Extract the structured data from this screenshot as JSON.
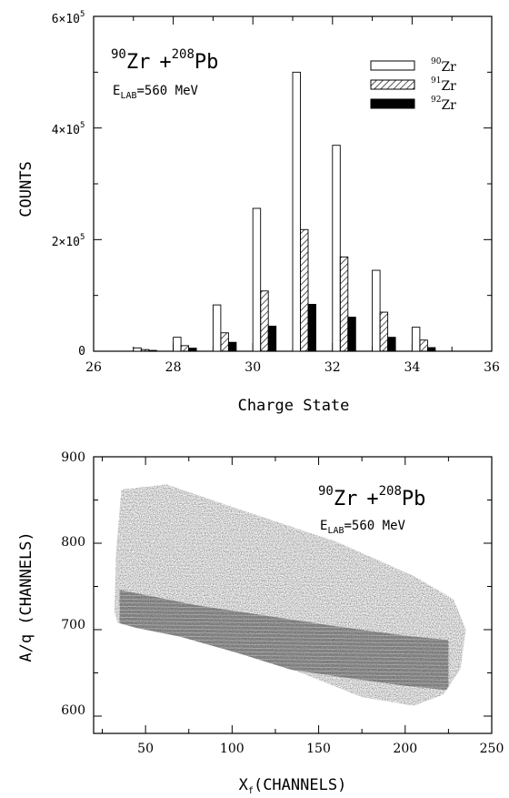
{
  "chart_data": [
    {
      "type": "bar",
      "title": "",
      "annotation": {
        "reaction": {
          "proj_mass": "90",
          "proj_sym": "Zr",
          "plus": "+",
          "targ_mass": "208",
          "targ_sym": "Pb"
        },
        "energy": {
          "prefix": "E",
          "sub": "LAB",
          "value": "=560 MeV"
        }
      },
      "xlabel": "Charge State",
      "ylabel": "COUNTS",
      "xlim": [
        26,
        36
      ],
      "ylim": [
        0,
        600000
      ],
      "x_ticks": [
        26,
        28,
        30,
        32,
        34,
        36
      ],
      "y_ticks": [
        {
          "value": 0,
          "mantissa": "0",
          "exp": ""
        },
        {
          "value": 200000,
          "mantissa": "2×10",
          "exp": "5"
        },
        {
          "value": 400000,
          "mantissa": "4×10",
          "exp": "5"
        },
        {
          "value": 600000,
          "mantissa": "6×10",
          "exp": "5"
        }
      ],
      "x": [
        27,
        28,
        29,
        30,
        31,
        32,
        33,
        34
      ],
      "series": [
        {
          "name": "Zr",
          "mass": "90",
          "fill": "open",
          "values": [
            6000,
            25000,
            83000,
            256000,
            500000,
            369000,
            145000,
            43000
          ]
        },
        {
          "name": "Zr",
          "mass": "91",
          "fill": "hatched",
          "values": [
            3000,
            10000,
            33000,
            108000,
            218000,
            169000,
            70000,
            20000
          ]
        },
        {
          "name": "Zr",
          "mass": "92",
          "fill": "solid",
          "values": [
            1500,
            5500,
            16000,
            45000,
            84000,
            61000,
            25000,
            6500
          ]
        }
      ],
      "legend_position": "top-right",
      "grid": false
    },
    {
      "type": "scatter",
      "title": "",
      "annotation": {
        "reaction": {
          "proj_mass": "90",
          "proj_sym": "Zr",
          "plus": "+",
          "targ_mass": "208",
          "targ_sym": "Pb"
        },
        "energy": {
          "prefix": "E",
          "sub": "LAB",
          "value": "=560 MeV"
        }
      },
      "xlabel": {
        "main": "X",
        "sub": "f",
        "rest": "(CHANNELS)"
      },
      "ylabel": "A/q (CHANNELS)",
      "xlim": [
        20,
        250
      ],
      "ylim": [
        580,
        900
      ],
      "x_ticks": [
        50,
        100,
        150,
        200,
        250
      ],
      "y_ticks": [
        600,
        700,
        800,
        900
      ],
      "density_boundary": [
        [
          32,
          720
        ],
        [
          33,
          790
        ],
        [
          36,
          862
        ],
        [
          62,
          868
        ],
        [
          100,
          842
        ],
        [
          160,
          802
        ],
        [
          205,
          762
        ],
        [
          228,
          735
        ],
        [
          235,
          700
        ],
        [
          232,
          655
        ],
        [
          222,
          625
        ],
        [
          205,
          612
        ],
        [
          175,
          622
        ],
        [
          140,
          650
        ],
        [
          105,
          672
        ],
        [
          70,
          692
        ],
        [
          45,
          702
        ],
        [
          34,
          708
        ]
      ],
      "dense_band_center": [
        [
          35,
          718
        ],
        [
          80,
          700
        ],
        [
          120,
          688
        ],
        [
          160,
          676
        ],
        [
          200,
          665
        ],
        [
          225,
          660
        ]
      ],
      "grid": false
    }
  ]
}
